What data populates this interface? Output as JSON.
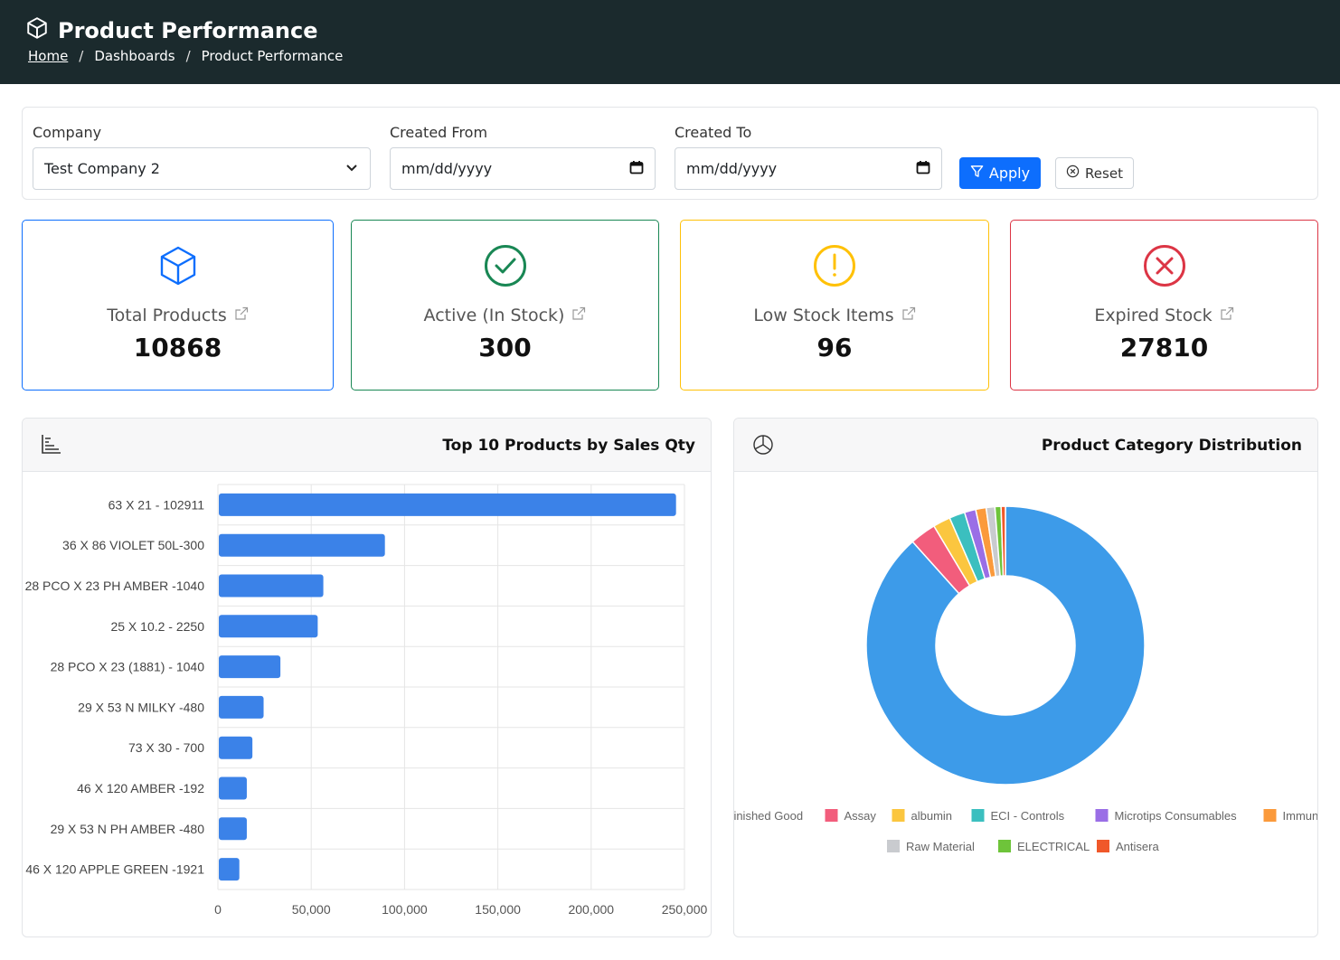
{
  "header": {
    "title": "Product Performance",
    "breadcrumb": {
      "home": "Home",
      "sep": "/",
      "dashboards": "Dashboards",
      "current": "Product Performance"
    }
  },
  "filters": {
    "company_label": "Company",
    "company_value": "Test Company 2",
    "created_from_label": "Created From",
    "created_from_placeholder": "mm/dd/yyyy",
    "created_to_label": "Created To",
    "created_to_placeholder": "mm/dd/yyyy",
    "apply_label": "Apply",
    "reset_label": "Reset"
  },
  "kpis": [
    {
      "label": "Total Products",
      "value": "10868",
      "color": "#0d6efd",
      "icon": "box-icon"
    },
    {
      "label": "Active (In Stock)",
      "value": "300",
      "color": "#198754",
      "icon": "check-circle-icon"
    },
    {
      "label": "Low Stock Items",
      "value": "96",
      "color": "#ffc107",
      "icon": "exclamation-circle-icon"
    },
    {
      "label": "Expired Stock",
      "value": "27810",
      "color": "#dc3545",
      "icon": "x-circle-icon"
    }
  ],
  "chart_data": [
    {
      "type": "bar",
      "orientation": "horizontal",
      "title": "Top 10 Products by Sales Qty",
      "categories": [
        "63 X 21 - 102911",
        "36 X 86 VIOLET 50L-300",
        "28 PCO X 23 PH AMBER -1040",
        "25 X 10.2 - 2250",
        "28 PCO X 23 (1881) - 1040",
        "29 X 53 N MILKY -480",
        "73 X 30 - 700",
        "46 X 120 AMBER -192",
        "29 X 53 N PH AMBER -480",
        "46 X 120 APPLE GREEN -1921"
      ],
      "values": [
        245000,
        89000,
        56000,
        53000,
        33000,
        24000,
        18000,
        15000,
        15000,
        11000
      ],
      "xlim": [
        0,
        250000
      ],
      "xticks": [
        "0",
        "50,000",
        "100,000",
        "150,000",
        "200,000",
        "250,000"
      ],
      "color": "#3b82e8",
      "grid": true
    },
    {
      "type": "pie",
      "donut": true,
      "title": "Product Category Distribution",
      "legend_position": "bottom",
      "series": [
        {
          "name": "Finished Good",
          "value": 87.5,
          "color": "#3d9be9"
        },
        {
          "name": "Assay",
          "value": 3.0,
          "color": "#f25d7c"
        },
        {
          "name": "albumin",
          "value": 2.0,
          "color": "#fbc63f"
        },
        {
          "name": "ECI - Controls",
          "value": 1.8,
          "color": "#3bbfbf"
        },
        {
          "name": "Microtips Consumables",
          "value": 1.3,
          "color": "#9a6ee6"
        },
        {
          "name": "Immunology",
          "value": 1.2,
          "color": "#fb9a3b"
        },
        {
          "name": "Raw Material",
          "value": 1.0,
          "color": "#c9cbcf"
        },
        {
          "name": "ELECTRICAL",
          "value": 0.7,
          "color": "#6ec43a"
        },
        {
          "name": "Antisera",
          "value": 0.5,
          "color": "#f0582a"
        }
      ]
    }
  ]
}
